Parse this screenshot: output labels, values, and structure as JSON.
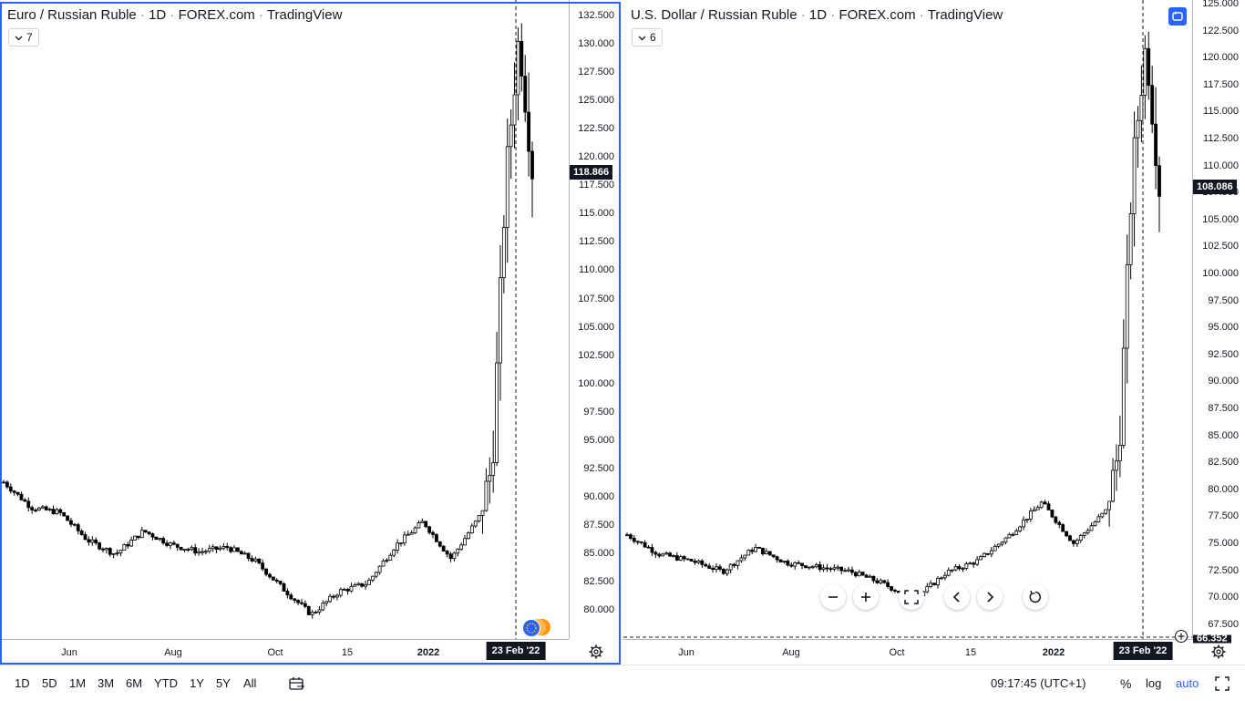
{
  "left_chart": {
    "title_symbol": "Euro / Russian Ruble",
    "title_interval": "1D",
    "title_exchange": "FOREX.com",
    "title_source": "TradingView",
    "indicators_count": "7",
    "last_price": "118.866",
    "crosshair_date": "23 Feb '22",
    "price_ticks": [
      "132.500",
      "130.000",
      "127.500",
      "125.000",
      "122.500",
      "120.000",
      "117.500",
      "115.000",
      "112.500",
      "110.000",
      "107.500",
      "105.000",
      "102.500",
      "100.000",
      "97.500",
      "95.000",
      "92.500",
      "90.000",
      "87.500",
      "85.000",
      "82.500",
      "80.000"
    ],
    "time_ticks": [
      "Jun",
      "Aug",
      "Oct",
      "15",
      "2022"
    ],
    "settings_icon": "gear-icon"
  },
  "right_chart": {
    "title_symbol": "U.S. Dollar / Russian Ruble",
    "title_interval": "1D",
    "title_exchange": "FOREX.com",
    "title_source": "TradingView",
    "indicators_count": "6",
    "last_price": "108.086",
    "crosshair_date": "23 Feb '22",
    "partial_price_label": "66.352",
    "price_ticks": [
      "125.000",
      "122.500",
      "120.000",
      "117.500",
      "115.000",
      "112.500",
      "110.000",
      "107.500",
      "105.000",
      "102.500",
      "100.000",
      "97.500",
      "95.000",
      "92.500",
      "90.000",
      "87.500",
      "85.000",
      "82.500",
      "80.000",
      "77.500",
      "75.000",
      "72.500",
      "70.000",
      "67.500"
    ],
    "time_ticks": [
      "Jun",
      "Aug",
      "Oct",
      "15",
      "2022"
    ],
    "settings_icon": "gear-icon"
  },
  "bottom_toolbar": {
    "ranges": [
      "1D",
      "5D",
      "1M",
      "3M",
      "6M",
      "YTD",
      "1Y",
      "5Y",
      "All"
    ],
    "clock": "09:17:45 (UTC+1)",
    "percent_label": "%",
    "log_label": "log",
    "auto_label": "auto"
  },
  "colors": {
    "accent": "#2962ff",
    "candle": "#000000",
    "text": "#131722",
    "axis": "#b2b5be"
  },
  "chart_data": [
    {
      "type": "candlestick",
      "title": "Euro / Russian Ruble · 1D · FOREX.com · TradingView",
      "x_ticks": [
        "Jun",
        "Aug",
        "Oct",
        "15",
        "2022"
      ],
      "ylim": [
        78.5,
        133.5
      ],
      "approx_close_path": [
        {
          "t": "Apr '21",
          "y": 92.0
        },
        {
          "t": "May '21",
          "y": 89.8
        },
        {
          "t": "early Jun",
          "y": 89.4
        },
        {
          "t": "mid Jun",
          "y": 87.0
        },
        {
          "t": "late Jun",
          "y": 85.8
        },
        {
          "t": "early Jul",
          "y": 87.8
        },
        {
          "t": "mid Jul",
          "y": 86.6
        },
        {
          "t": "Aug",
          "y": 86.0
        },
        {
          "t": "early Sep",
          "y": 86.4
        },
        {
          "t": "mid Sep",
          "y": 85.2
        },
        {
          "t": "Oct",
          "y": 82.8
        },
        {
          "t": "late Oct",
          "y": 80.6
        },
        {
          "t": "Nov",
          "y": 82.6
        },
        {
          "t": "Dec",
          "y": 83.3
        },
        {
          "t": "Jan '22",
          "y": 86.5
        },
        {
          "t": "late Jan",
          "y": 88.6
        },
        {
          "t": "Feb",
          "y": 85.4
        },
        {
          "t": "23 Feb '22",
          "y": 89.0
        },
        {
          "t": "24 Feb",
          "y": 93.5
        },
        {
          "t": "early Mar",
          "y": 118.0
        },
        {
          "t": "Mar 7",
          "y": 130.5
        },
        {
          "t": "last",
          "y": 118.866
        }
      ]
    },
    {
      "type": "candlestick",
      "title": "U.S. Dollar / Russian Ruble · 1D · FOREX.com · TradingView",
      "x_ticks": [
        "Jun",
        "Aug",
        "Oct",
        "15",
        "2022"
      ],
      "ylim": [
        66.35,
        125.5
      ],
      "approx_close_path": [
        {
          "t": "Apr '21",
          "y": 76.0
        },
        {
          "t": "May '21",
          "y": 74.2
        },
        {
          "t": "early Jun",
          "y": 73.6
        },
        {
          "t": "mid Jun",
          "y": 72.6
        },
        {
          "t": "early Jul",
          "y": 74.8
        },
        {
          "t": "Aug",
          "y": 73.4
        },
        {
          "t": "early Sep",
          "y": 73.0
        },
        {
          "t": "Sep",
          "y": 72.6
        },
        {
          "t": "Oct",
          "y": 71.5
        },
        {
          "t": "late Oct",
          "y": 70.0
        },
        {
          "t": "Nov",
          "y": 72.5
        },
        {
          "t": "Dec",
          "y": 73.6
        },
        {
          "t": "Jan '22",
          "y": 76.0
        },
        {
          "t": "late Jan",
          "y": 79.0
        },
        {
          "t": "Feb",
          "y": 75.2
        },
        {
          "t": "23 Feb '22",
          "y": 78.2
        },
        {
          "t": "24 Feb",
          "y": 84.0
        },
        {
          "t": "early Mar",
          "y": 110.0
        },
        {
          "t": "Mar 7",
          "y": 121.5
        },
        {
          "t": "last",
          "y": 108.086
        }
      ]
    }
  ]
}
